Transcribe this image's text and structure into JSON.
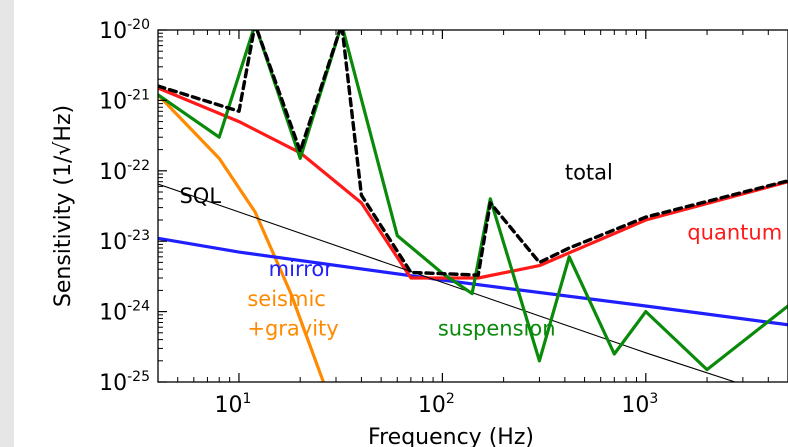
{
  "chart_data": {
    "type": "line",
    "title": "",
    "xlabel": "Frequency (Hz)",
    "ylabel": "Sensitivity (1/√Hz)",
    "xscale": "log",
    "yscale": "log",
    "xlim": [
      4,
      5000
    ],
    "ylim": [
      1e-25,
      1e-20
    ],
    "x_ticks": [
      {
        "value": 10,
        "base": "10",
        "exp": "1"
      },
      {
        "value": 100,
        "base": "10",
        "exp": "2"
      },
      {
        "value": 1000,
        "base": "10",
        "exp": "3"
      }
    ],
    "y_ticks": [
      {
        "value": 1e-20,
        "base": "10",
        "exp": "-20"
      },
      {
        "value": 1e-21,
        "base": "10",
        "exp": "-21"
      },
      {
        "value": 1e-22,
        "base": "10",
        "exp": "-22"
      },
      {
        "value": 1e-23,
        "base": "10",
        "exp": "-23"
      },
      {
        "value": 1e-24,
        "base": "10",
        "exp": "-24"
      },
      {
        "value": 1e-25,
        "base": "10",
        "exp": "-25"
      }
    ],
    "grid": false,
    "legend": "none",
    "series": [
      {
        "name": "seismic +gravity",
        "color": "#ff8a00",
        "style": "solid",
        "x": [
          4,
          8,
          12,
          18,
          26
        ],
        "y": [
          1.2e-21,
          1.5e-22,
          2.6e-23,
          1.8e-24,
          1e-25
        ]
      },
      {
        "name": "mirror",
        "color": "#1f1fff",
        "style": "solid",
        "x": [
          4,
          10,
          100,
          1000,
          5000
        ],
        "y": [
          1.1e-23,
          7e-24,
          2.8e-24,
          1.2e-24,
          6.5e-25
        ]
      },
      {
        "name": "quantum",
        "color": "#ff1a1a",
        "style": "solid",
        "x": [
          4,
          10,
          20,
          40,
          70,
          150,
          300,
          1000,
          5000
        ],
        "y": [
          1.5e-21,
          5e-22,
          1.8e-22,
          3.5e-23,
          3e-24,
          3e-24,
          4.5e-24,
          2e-23,
          7e-23
        ]
      },
      {
        "name": "SQL",
        "color": "#000000",
        "style": "thin",
        "x": [
          4,
          10,
          100,
          1000,
          4000
        ],
        "y": [
          6.5e-23,
          2.6e-23,
          2.6e-24,
          2.6e-25,
          7e-26
        ]
      },
      {
        "name": "suspension",
        "color": "#0a8a0a",
        "style": "solid",
        "x": [
          4,
          8,
          12,
          20,
          32,
          60,
          100,
          140,
          172,
          300,
          420,
          700,
          1000,
          2000,
          5000
        ],
        "y": [
          1.2e-21,
          3e-22,
          1.2e-20,
          1.5e-22,
          1.2e-20,
          1.2e-23,
          3.5e-24,
          1.8e-24,
          4e-23,
          2e-25,
          6e-24,
          2.5e-25,
          1e-24,
          1.5e-25,
          1.2e-24
        ]
      },
      {
        "name": "total",
        "color": "#000000",
        "style": "dashed",
        "x": [
          4,
          10,
          12,
          20,
          32,
          40,
          70,
          150,
          172,
          300,
          420,
          1000,
          5000
        ],
        "y": [
          1.6e-21,
          7e-22,
          1.2e-20,
          1.9e-22,
          1.2e-20,
          4.5e-23,
          3.6e-24,
          3.3e-24,
          3.5e-23,
          5e-24,
          8e-24,
          2.2e-23,
          7.2e-23
        ]
      }
    ],
    "annotations": [
      {
        "text": "total",
        "x": 400,
        "y": 7.5e-23,
        "color": "#000000"
      },
      {
        "text": "quantum",
        "x": 1600,
        "y": 1.05e-23,
        "color": "#ff1a1a"
      },
      {
        "text": "SQL",
        "x": 5.1,
        "y": 3.5e-23,
        "color": "#000000"
      },
      {
        "text": "mirror",
        "x": 14,
        "y": 3.2e-24,
        "color": "#1f1fff"
      },
      {
        "text": "seismic",
        "x": 11,
        "y": 1.2e-24,
        "color": "#ff8a00"
      },
      {
        "text": "+gravity",
        "x": 11,
        "y": 4.6e-25,
        "color": "#ff8a00"
      },
      {
        "text": "suspension",
        "x": 95,
        "y": 4.6e-25,
        "color": "#0a8a0a"
      }
    ]
  }
}
